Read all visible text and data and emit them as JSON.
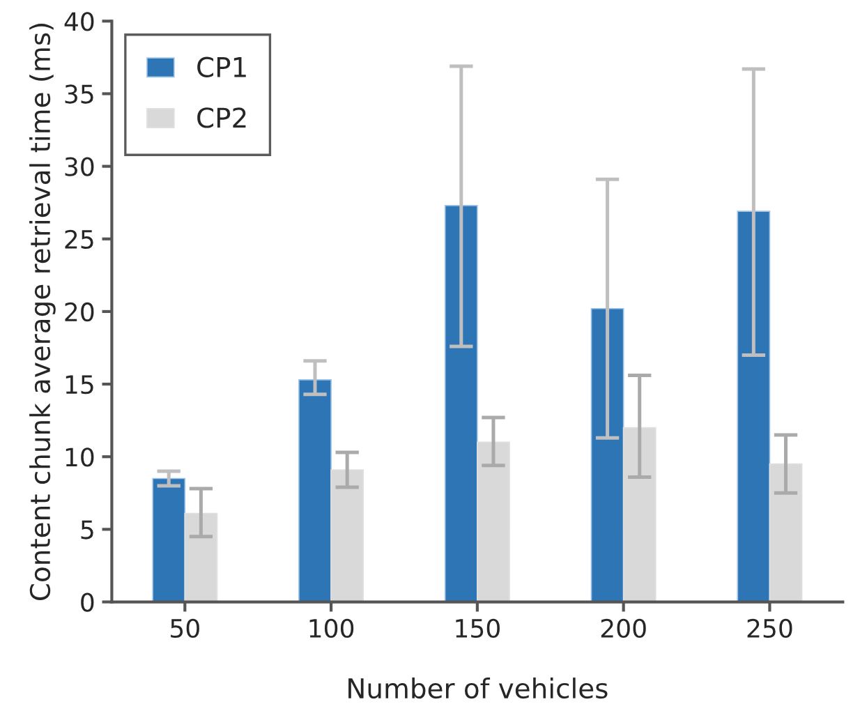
{
  "chart_data": {
    "type": "bar",
    "xlabel": "Number of vehicles",
    "ylabel": "Content chunk average retrieval time (ms)",
    "categories": [
      "50",
      "100",
      "150",
      "200",
      "250"
    ],
    "series": [
      {
        "name": "CP1",
        "color": "#2e75b6",
        "values": [
          8.5,
          15.3,
          27.3,
          20.2,
          26.9
        ],
        "errors": [
          [
            8.0,
            9.0
          ],
          [
            14.3,
            16.6
          ],
          [
            17.6,
            36.9
          ],
          [
            11.3,
            29.1
          ],
          [
            17.0,
            36.7
          ]
        ]
      },
      {
        "name": "CP2",
        "color": "#d9d9d9",
        "values": [
          6.1,
          9.1,
          11.0,
          12.0,
          9.5
        ],
        "errors": [
          [
            4.5,
            7.8
          ],
          [
            7.9,
            10.3
          ],
          [
            9.4,
            12.7
          ],
          [
            8.6,
            15.6
          ],
          [
            7.5,
            11.5
          ]
        ]
      }
    ],
    "ylim": [
      0,
      40
    ],
    "yticks": [
      0,
      5,
      10,
      15,
      20,
      25,
      30,
      35,
      40
    ],
    "grid": false,
    "legend": "top left"
  }
}
